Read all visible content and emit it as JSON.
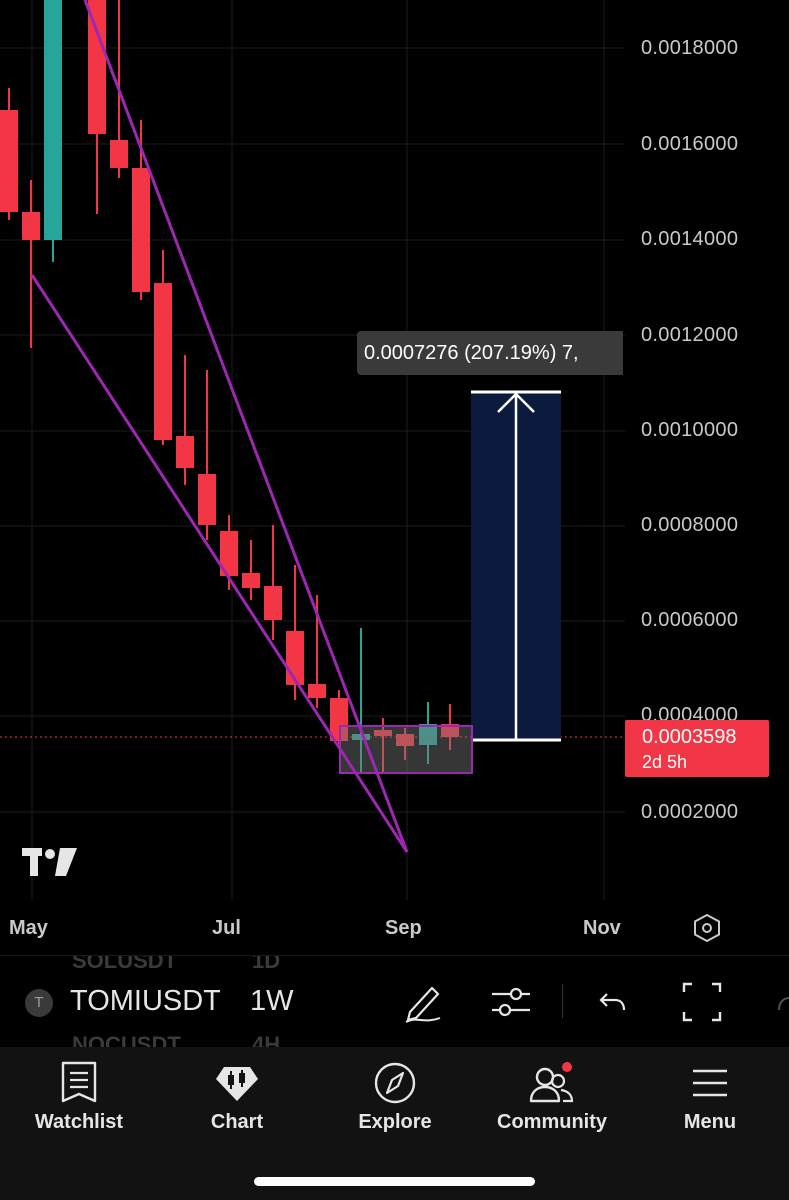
{
  "chart": {
    "price_axis": [
      "0.0018000",
      "0.0016000",
      "0.0014000",
      "0.0012000",
      "0.0010000",
      "0.0008000",
      "0.0006000",
      "0.0004000",
      "0.0002000"
    ],
    "time_axis": [
      "May",
      "Jul",
      "Sep",
      "Nov"
    ],
    "current_price": "0.0003598",
    "countdown": "2d 5h",
    "measure_label": "0.0007276 (207.19%) 7,",
    "colors": {
      "up": "#26a69a",
      "down": "#f23645",
      "wedge": "#9c27b0",
      "target_zone": "#0b1a3d"
    }
  },
  "toolbar": {
    "symbol_initial": "T",
    "symbol": "TOMIUSDT",
    "interval": "1W",
    "ghost_above_symbol": "SOLUSDT",
    "ghost_above_interval": "1D",
    "ghost_below_symbol": "NOCUSDT",
    "ghost_below_interval": "4H",
    "icons": [
      "pen-icon",
      "indicators-icon",
      "undo-icon",
      "fullscreen-icon"
    ]
  },
  "nav": {
    "items": [
      {
        "label": "Watchlist",
        "icon": "watchlist-icon"
      },
      {
        "label": "Chart",
        "icon": "chart-icon"
      },
      {
        "label": "Explore",
        "icon": "compass-icon"
      },
      {
        "label": "Community",
        "icon": "community-icon"
      },
      {
        "label": "Menu",
        "icon": "menu-icon"
      }
    ]
  }
}
